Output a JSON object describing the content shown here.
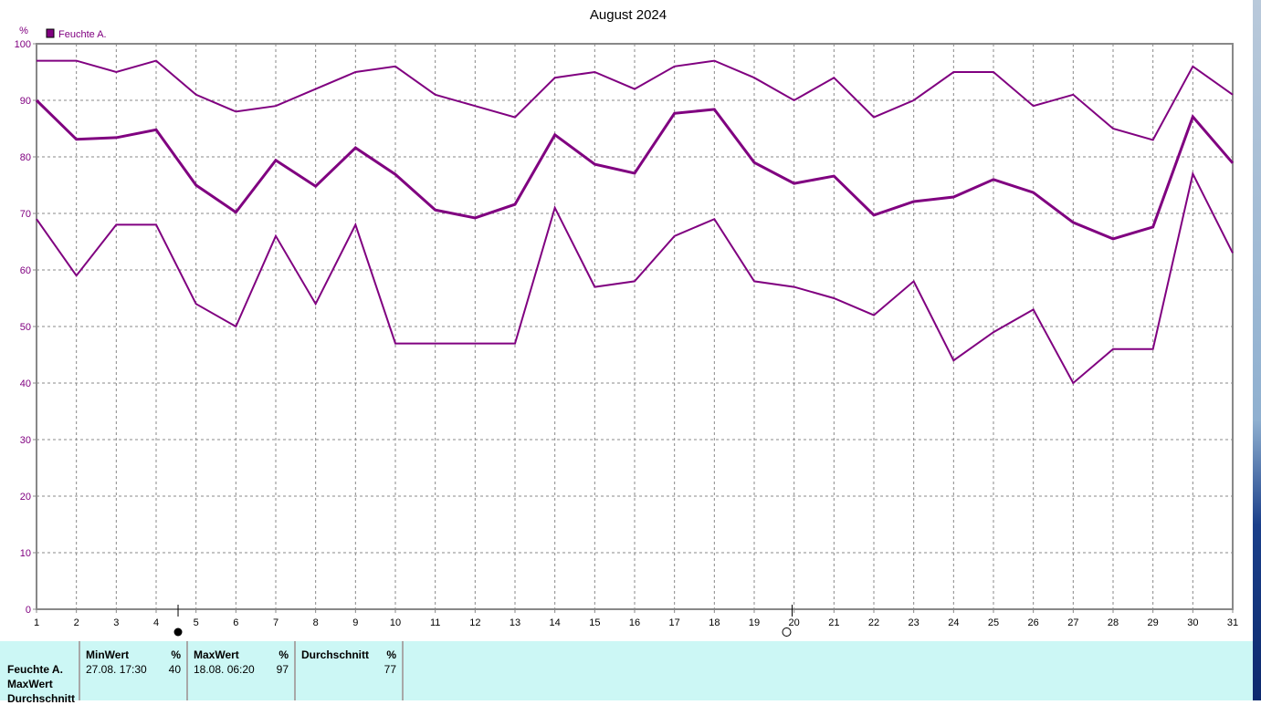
{
  "chart_data": {
    "type": "line",
    "title": "August 2024",
    "ylabel": "%",
    "ylim": [
      0,
      100
    ],
    "yticks": [
      0,
      10,
      20,
      30,
      40,
      50,
      60,
      70,
      80,
      90,
      100
    ],
    "x": [
      1,
      2,
      3,
      4,
      5,
      6,
      7,
      8,
      9,
      10,
      11,
      12,
      13,
      14,
      15,
      16,
      17,
      18,
      19,
      20,
      21,
      22,
      23,
      24,
      25,
      26,
      27,
      28,
      29,
      30,
      31
    ],
    "legend": [
      "Feuchte A."
    ],
    "legend_placement": "top-left",
    "grid": true,
    "color": "#800080",
    "series": [
      {
        "name": "MaxWert",
        "values": [
          97,
          97,
          95,
          97,
          91,
          88,
          89,
          92,
          95,
          96,
          91,
          89,
          87,
          94,
          95,
          92,
          96,
          97,
          94,
          90,
          94,
          87,
          90,
          95,
          95,
          89,
          91,
          85,
          83,
          96,
          91
        ]
      },
      {
        "name": "Durchschnitt",
        "values": [
          90,
          83.1,
          83.4,
          84.8,
          75,
          70.2,
          79.4,
          74.8,
          81.6,
          76.9,
          70.6,
          69.2,
          71.6,
          83.9,
          78.7,
          77.1,
          87.7,
          88.4,
          79,
          75.3,
          76.6,
          69.7,
          72.1,
          72.9,
          76,
          73.7,
          68.4,
          65.5,
          67.6,
          87.1,
          78.9
        ]
      },
      {
        "name": "MinWert",
        "values": [
          69,
          59,
          68,
          68,
          54,
          50,
          66,
          54,
          68,
          47,
          47,
          47,
          47,
          71,
          57,
          58,
          66,
          69,
          58,
          57,
          55,
          52,
          58,
          44,
          49,
          53,
          40,
          46,
          46,
          77,
          63
        ]
      }
    ],
    "markers": {
      "full_moon_day": 4.55,
      "new_moon_day": 19.95
    }
  },
  "table": {
    "rows": [
      "Feuchte A.",
      "MaxWert",
      "Durchschnitt"
    ],
    "min": {
      "label": "MinWert",
      "unit": "%",
      "date": "27.08.  17:30",
      "value": "40"
    },
    "max": {
      "label": "MaxWert",
      "unit": "%",
      "date": "18.08.  06:20",
      "value": "97"
    },
    "avg": {
      "label": "Durchschnitt",
      "unit": "%",
      "value": "77"
    }
  }
}
